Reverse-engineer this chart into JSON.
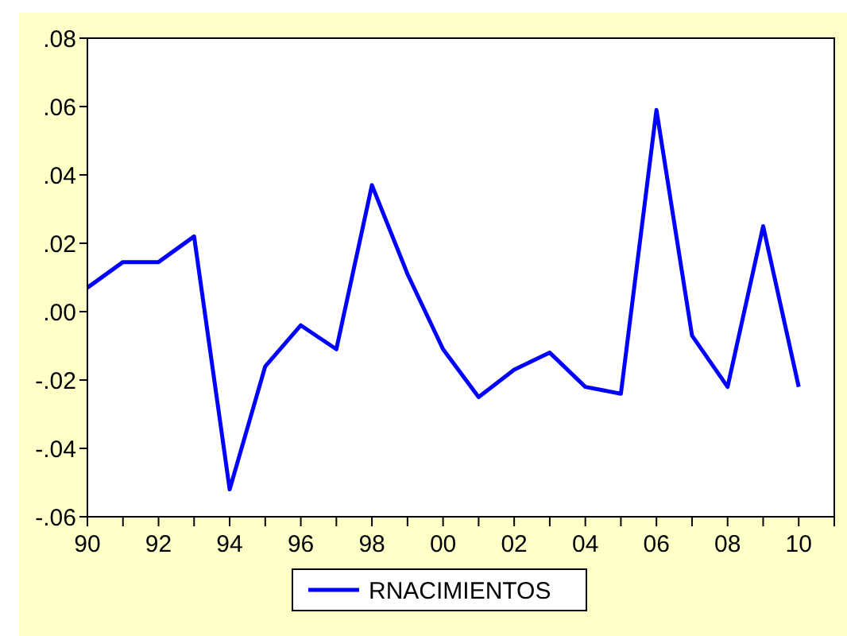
{
  "chart_data": {
    "type": "line",
    "x": [
      1990,
      1991,
      1992,
      1993,
      1994,
      1995,
      1996,
      1997,
      1998,
      1999,
      2000,
      2001,
      2002,
      2003,
      2004,
      2005,
      2006,
      2007,
      2008,
      2009,
      2010
    ],
    "series": [
      {
        "name": "RNACIMIENTOS",
        "color": "#0000ff",
        "values": [
          0.007,
          0.0145,
          0.0145,
          0.022,
          -0.052,
          -0.016,
          -0.004,
          -0.011,
          0.037,
          0.011,
          -0.011,
          -0.025,
          -0.017,
          -0.012,
          -0.022,
          -0.024,
          0.059,
          -0.007,
          -0.022,
          0.025,
          -0.022
        ]
      }
    ],
    "xlim": [
      1990,
      2011
    ],
    "xticks": [
      {
        "value": 1990,
        "label": "90"
      },
      {
        "value": 1991,
        "label": null
      },
      {
        "value": 1992,
        "label": "92"
      },
      {
        "value": 1993,
        "label": null
      },
      {
        "value": 1994,
        "label": "94"
      },
      {
        "value": 1995,
        "label": null
      },
      {
        "value": 1996,
        "label": "96"
      },
      {
        "value": 1997,
        "label": null
      },
      {
        "value": 1998,
        "label": "98"
      },
      {
        "value": 1999,
        "label": null
      },
      {
        "value": 2000,
        "label": "00"
      },
      {
        "value": 2001,
        "label": null
      },
      {
        "value": 2002,
        "label": "02"
      },
      {
        "value": 2003,
        "label": null
      },
      {
        "value": 2004,
        "label": "04"
      },
      {
        "value": 2005,
        "label": null
      },
      {
        "value": 2006,
        "label": "06"
      },
      {
        "value": 2007,
        "label": null
      },
      {
        "value": 2008,
        "label": "08"
      },
      {
        "value": 2009,
        "label": null
      },
      {
        "value": 2010,
        "label": "10"
      },
      {
        "value": 2011,
        "label": null
      }
    ],
    "ylim": [
      -0.06,
      0.08
    ],
    "yticks": [
      {
        "value": -0.06,
        "label": "-.06"
      },
      {
        "value": -0.04,
        "label": "-.04"
      },
      {
        "value": -0.02,
        "label": "-.02"
      },
      {
        "value": 0,
        "label": ".00"
      },
      {
        "value": 0.02,
        "label": ".02"
      },
      {
        "value": 0.04,
        "label": ".04"
      },
      {
        "value": 0.06,
        "label": ".06"
      },
      {
        "value": 0.08,
        "label": ".08"
      }
    ],
    "legend": "bottom",
    "grid": false,
    "marker": "none",
    "line_style": "solid"
  }
}
